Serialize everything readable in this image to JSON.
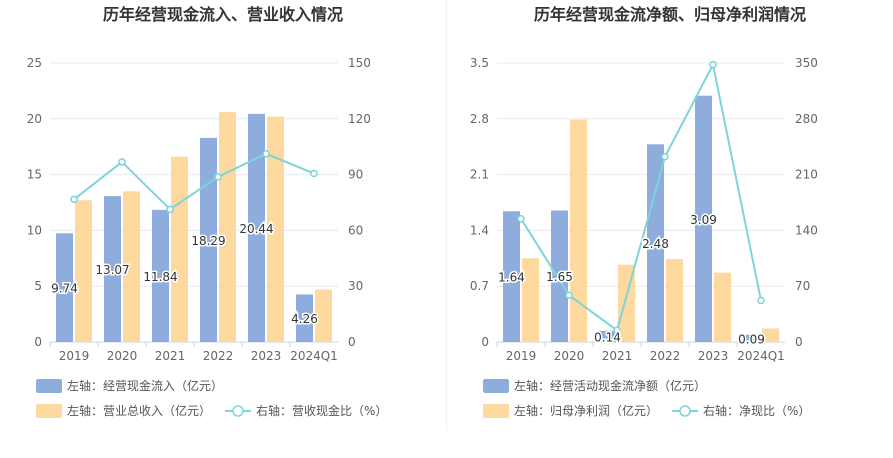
{
  "colors": {
    "bar_left": "#8eaddd",
    "bar_right": "#fdd9a0",
    "line": "#7fd3dc",
    "grid": "#e6e9f0",
    "axis_text": "#666666",
    "title": "#333333"
  },
  "chart_data": [
    {
      "type": "bar",
      "title": "历年经营现金流入、营业收入情况",
      "categories": [
        "2019",
        "2020",
        "2021",
        "2022",
        "2023",
        "2024Q1"
      ],
      "left_axis": {
        "ylim": [
          0,
          25
        ],
        "ticks": [
          "0",
          "5",
          "10",
          "15",
          "20",
          "25"
        ]
      },
      "right_axis": {
        "ylim": [
          0,
          150
        ],
        "ticks": [
          "0",
          "30",
          "60",
          "90",
          "120",
          "150"
        ]
      },
      "grid": true,
      "legend_position": "bottom-left",
      "series": [
        {
          "name": "左轴：经营现金流入（亿元）",
          "kind": "bar",
          "axis": "left",
          "values": [
            9.74,
            13.07,
            11.84,
            18.29,
            20.44,
            4.26
          ],
          "labels": [
            "9.74",
            "13.07",
            "11.84",
            "18.29",
            "20.44",
            "4.26"
          ]
        },
        {
          "name": "左轴：营业总收入（亿元）",
          "kind": "bar",
          "axis": "left",
          "values": [
            12.7,
            13.5,
            16.6,
            20.6,
            20.2,
            4.7
          ]
        },
        {
          "name": "右轴：营收现金比（%）",
          "kind": "line",
          "axis": "right",
          "values": [
            76.7,
            96.8,
            71.3,
            88.8,
            101.2,
            90.6
          ]
        }
      ]
    },
    {
      "type": "bar",
      "title": "历年经营现金流净额、归母净利润情况",
      "categories": [
        "2019",
        "2020",
        "2021",
        "2022",
        "2023",
        "2024Q1"
      ],
      "left_axis": {
        "ylim": [
          0,
          3.5
        ],
        "ticks": [
          "0",
          "0.7",
          "1.4",
          "2.1",
          "2.8",
          "3.5"
        ]
      },
      "right_axis": {
        "ylim": [
          0,
          350
        ],
        "ticks": [
          "0",
          "70",
          "140",
          "210",
          "280",
          "350"
        ]
      },
      "grid": true,
      "legend_position": "bottom-left",
      "series": [
        {
          "name": "左轴：经营活动现金流净额（亿元）",
          "kind": "bar",
          "axis": "left",
          "values": [
            1.64,
            1.65,
            0.14,
            2.48,
            3.09,
            0.09
          ],
          "labels": [
            "1.64",
            "1.65",
            "0.14",
            "2.48",
            "3.09",
            "0.09"
          ]
        },
        {
          "name": "左轴：归母净利润（亿元）",
          "kind": "bar",
          "axis": "left",
          "values": [
            1.05,
            2.79,
            0.97,
            1.04,
            0.87,
            0.17
          ]
        },
        {
          "name": "右轴：净现比（%）",
          "kind": "line",
          "axis": "right",
          "values": [
            154.6,
            58.6,
            14.6,
            232.5,
            347.9,
            52.1
          ]
        }
      ]
    }
  ]
}
